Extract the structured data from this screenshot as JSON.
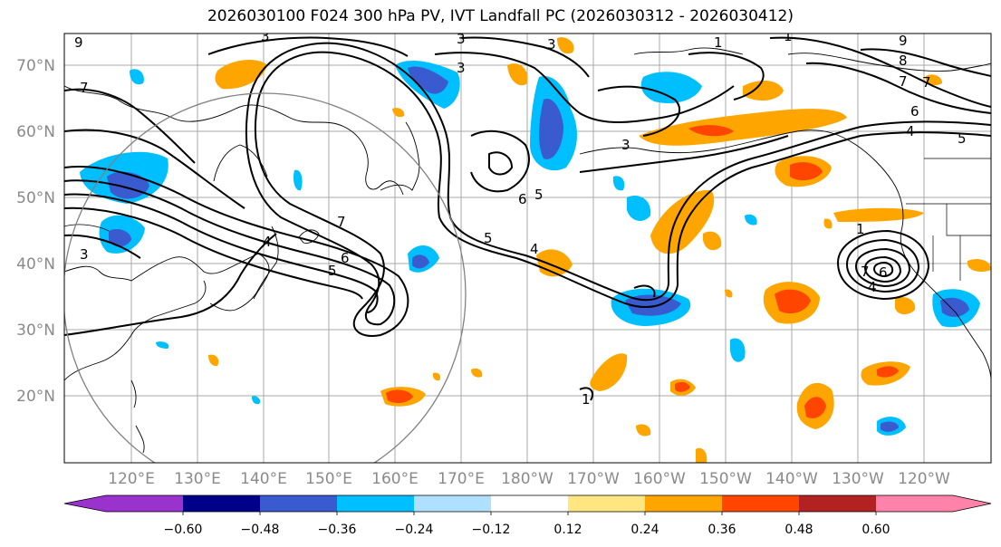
{
  "title": "2026030100 F024 300 hPa PV, IVT Landfall PC (2026030312 - 2026030412)",
  "latitude_labels": [
    "70°N",
    "60°N",
    "50°N",
    "40°N",
    "30°N",
    "20°N"
  ],
  "longitude_labels": [
    "120°E",
    "130°E",
    "140°E",
    "150°E",
    "160°E",
    "170°E",
    "180°W",
    "170°W",
    "160°W",
    "150°W",
    "140°W",
    "130°W",
    "120°W"
  ],
  "colorbar": {
    "tick_labels": [
      "−0.60",
      "−0.48",
      "−0.36",
      "−0.24",
      "−0.12",
      "0.12",
      "0.24",
      "0.36",
      "0.48",
      "0.60"
    ],
    "colors": [
      "#9a32cd",
      "#00008b",
      "#3a5bd0",
      "#00bfff",
      "#b0e0ff",
      "#ffffff",
      "#ffe680",
      "#ffa500",
      "#ff4500",
      "#b22222",
      "#ff82ab"
    ]
  },
  "contour_labels": [
    "3",
    "3",
    "3",
    "4",
    "5",
    "7",
    "7",
    "6",
    "5",
    "4",
    "3",
    "1",
    "1",
    "9",
    "8",
    "7",
    "6",
    "5",
    "4",
    "6",
    "7",
    "9",
    "1",
    "3",
    "5",
    "6",
    "4",
    "7",
    "3",
    "1"
  ]
}
